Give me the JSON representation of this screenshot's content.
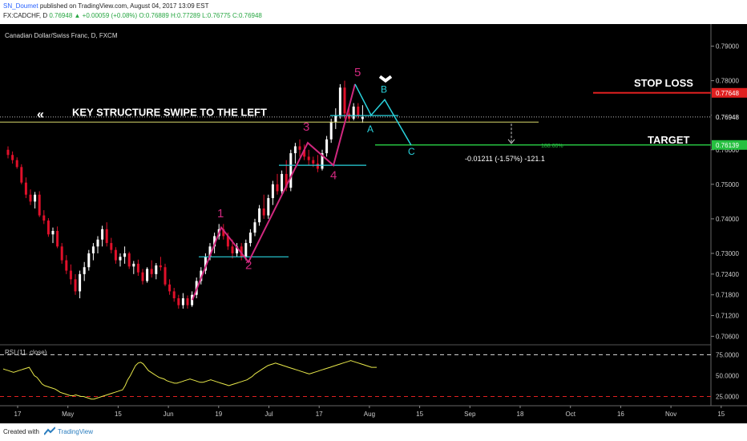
{
  "header": {
    "user": "SN_Doumet",
    "published": "published on TradingView.com, August 04, 2017 13:09 EST",
    "symbol": "FX:CADCHF, D",
    "last": "0.76948",
    "change": "+0.00059 (+0.08%)",
    "ohlc": "O:0.76889 H:0.77289 L:0.76775 C:0.76948"
  },
  "footer": {
    "created": "Created with",
    "brand": "TradingView"
  },
  "chart_data": {
    "type": "candlestick",
    "title": "Canadian Dollar/Swiss Franc, D, FXCM",
    "price_ylim": [
      0.704,
      0.795
    ],
    "price_ticks": [
      "0.79000",
      "0.78000",
      "0.77000",
      "0.76000",
      "0.75000",
      "0.74000",
      "0.73000",
      "0.72400",
      "0.71800",
      "0.71200",
      "0.70600"
    ],
    "x_ticks": [
      "17",
      "May",
      "15",
      "Jun",
      "19",
      "Jul",
      "17",
      "Aug",
      "15",
      "Sep",
      "18",
      "Oct",
      "16",
      "Nov",
      "15"
    ],
    "colors": {
      "up": "#ffffff",
      "down": "#e0102a",
      "wave": "#d0287f",
      "abc": "#29d3dd",
      "key_level": "#d8d86a",
      "stop": "#e02020",
      "target": "#26c040",
      "rsi": "#e8e84a",
      "rsi_band": "#e02020"
    },
    "candles_ohlc": [
      [
        0.76,
        0.761,
        0.7575,
        0.7585
      ],
      [
        0.7585,
        0.7595,
        0.756,
        0.757
      ],
      [
        0.757,
        0.7578,
        0.7545,
        0.755
      ],
      [
        0.755,
        0.7558,
        0.75,
        0.7505
      ],
      [
        0.7505,
        0.752,
        0.746,
        0.747
      ],
      [
        0.747,
        0.7485,
        0.744,
        0.745
      ],
      [
        0.745,
        0.7478,
        0.743,
        0.747
      ],
      [
        0.747,
        0.748,
        0.7405,
        0.741
      ],
      [
        0.741,
        0.7425,
        0.7385,
        0.7395
      ],
      [
        0.7395,
        0.7402,
        0.7348,
        0.7355
      ],
      [
        0.7355,
        0.7375,
        0.733,
        0.7365
      ],
      [
        0.7365,
        0.7378,
        0.7315,
        0.732
      ],
      [
        0.732,
        0.733,
        0.727,
        0.728
      ],
      [
        0.728,
        0.7295,
        0.724,
        0.725
      ],
      [
        0.725,
        0.7268,
        0.721,
        0.7225
      ],
      [
        0.7225,
        0.724,
        0.718,
        0.719
      ],
      [
        0.719,
        0.725,
        0.717,
        0.724
      ],
      [
        0.724,
        0.7275,
        0.722,
        0.726
      ],
      [
        0.726,
        0.731,
        0.725,
        0.73
      ],
      [
        0.73,
        0.733,
        0.728,
        0.732
      ],
      [
        0.732,
        0.735,
        0.73,
        0.734
      ],
      [
        0.734,
        0.738,
        0.732,
        0.737
      ],
      [
        0.737,
        0.739,
        0.732,
        0.733
      ],
      [
        0.733,
        0.7345,
        0.73,
        0.731
      ],
      [
        0.731,
        0.7318,
        0.727,
        0.728
      ],
      [
        0.728,
        0.73,
        0.7262,
        0.729
      ],
      [
        0.729,
        0.732,
        0.727,
        0.73
      ],
      [
        0.73,
        0.7305,
        0.7255,
        0.7262
      ],
      [
        0.7262,
        0.7278,
        0.724,
        0.727
      ],
      [
        0.727,
        0.7282,
        0.7235,
        0.7245
      ],
      [
        0.7245,
        0.7255,
        0.721,
        0.722
      ],
      [
        0.722,
        0.726,
        0.7215,
        0.7255
      ],
      [
        0.7255,
        0.728,
        0.723,
        0.724
      ],
      [
        0.724,
        0.7272,
        0.7225,
        0.7265
      ],
      [
        0.7265,
        0.729,
        0.725,
        0.726
      ],
      [
        0.726,
        0.727,
        0.7205,
        0.721
      ],
      [
        0.721,
        0.7225,
        0.718,
        0.719
      ],
      [
        0.719,
        0.72,
        0.716,
        0.717
      ],
      [
        0.717,
        0.718,
        0.714,
        0.715
      ],
      [
        0.715,
        0.7185,
        0.714,
        0.717
      ],
      [
        0.717,
        0.7178,
        0.714,
        0.715
      ],
      [
        0.715,
        0.719,
        0.7145,
        0.718
      ],
      [
        0.718,
        0.723,
        0.717,
        0.722
      ],
      [
        0.722,
        0.726,
        0.721,
        0.725
      ],
      [
        0.725,
        0.73,
        0.724,
        0.729
      ],
      [
        0.729,
        0.733,
        0.728,
        0.732
      ],
      [
        0.732,
        0.736,
        0.73,
        0.735
      ],
      [
        0.735,
        0.7385,
        0.734,
        0.737
      ],
      [
        0.737,
        0.7385,
        0.734,
        0.735
      ],
      [
        0.735,
        0.736,
        0.731,
        0.732
      ],
      [
        0.732,
        0.734,
        0.7285,
        0.73
      ],
      [
        0.73,
        0.733,
        0.729,
        0.732
      ],
      [
        0.732,
        0.733,
        0.728,
        0.729
      ],
      [
        0.729,
        0.734,
        0.728,
        0.733
      ],
      [
        0.733,
        0.737,
        0.732,
        0.736
      ],
      [
        0.736,
        0.74,
        0.735,
        0.739
      ],
      [
        0.739,
        0.744,
        0.738,
        0.743
      ],
      [
        0.743,
        0.747,
        0.74,
        0.741
      ],
      [
        0.741,
        0.747,
        0.74,
        0.746
      ],
      [
        0.746,
        0.751,
        0.744,
        0.75
      ],
      [
        0.75,
        0.753,
        0.747,
        0.748
      ],
      [
        0.748,
        0.754,
        0.747,
        0.753
      ],
      [
        0.753,
        0.757,
        0.748,
        0.749
      ],
      [
        0.749,
        0.76,
        0.748,
        0.759
      ],
      [
        0.759,
        0.762,
        0.756,
        0.761
      ],
      [
        0.761,
        0.763,
        0.758,
        0.76
      ],
      [
        0.76,
        0.7615,
        0.757,
        0.758
      ],
      [
        0.758,
        0.76,
        0.7555,
        0.757
      ],
      [
        0.757,
        0.758,
        0.755,
        0.756
      ],
      [
        0.756,
        0.7585,
        0.7535,
        0.7545
      ],
      [
        0.7545,
        0.76,
        0.754,
        0.759
      ],
      [
        0.759,
        0.764,
        0.758,
        0.763
      ],
      [
        0.763,
        0.769,
        0.762,
        0.768
      ],
      [
        0.768,
        0.772,
        0.766,
        0.77
      ],
      [
        0.77,
        0.779,
        0.769,
        0.778
      ],
      [
        0.778,
        0.78,
        0.769,
        0.7705
      ],
      [
        0.7705,
        0.772,
        0.768,
        0.769
      ],
      [
        0.769,
        0.7735,
        0.7685,
        0.7725
      ],
      [
        0.7725,
        0.7735,
        0.769,
        0.77
      ],
      [
        0.7689,
        0.7729,
        0.7678,
        0.7695
      ]
    ],
    "rsi": {
      "label": "RSI (11, close)",
      "ylim": [
        14,
        85
      ],
      "levels": [
        75,
        25
      ],
      "ticks": [
        "75.0000",
        "50.0000",
        "25.0000"
      ],
      "values": [
        58,
        57,
        56,
        55,
        54,
        55,
        56,
        57,
        58,
        59,
        60,
        55,
        50,
        48,
        44,
        40,
        38,
        37,
        36,
        35,
        34,
        32,
        30,
        29,
        28,
        27,
        26,
        26,
        27,
        26,
        25,
        25,
        24,
        23,
        22,
        22,
        23,
        24,
        25,
        26,
        27,
        28,
        29,
        30,
        31,
        32,
        33,
        38,
        45,
        50,
        56,
        62,
        65,
        66,
        64,
        60,
        56,
        54,
        52,
        50,
        48,
        47,
        46,
        44,
        43,
        42,
        41,
        41,
        42,
        43,
        44,
        45,
        46,
        45,
        44,
        43,
        42,
        42,
        43,
        44,
        45,
        44,
        43,
        42,
        41,
        40,
        39,
        38,
        39,
        40,
        41,
        42,
        43,
        44,
        45,
        47,
        49,
        52,
        54,
        56,
        58,
        60,
        62,
        63,
        64,
        65,
        64,
        63,
        62,
        61,
        60,
        59,
        58,
        57,
        56,
        55,
        54,
        53,
        52,
        53,
        54,
        55,
        56,
        57,
        58,
        59,
        60,
        61,
        62,
        63,
        64,
        65,
        66,
        67,
        68,
        67,
        66,
        65,
        64,
        63,
        62,
        61,
        60,
        60,
        60
      ]
    },
    "annotations": {
      "key_structure": "KEY STRUCTURE SWIPE TO THE LEFT",
      "stop_loss_label": "STOP LOSS",
      "target_label": "TARGET",
      "stop_loss_price": "0.77648",
      "target_price": "0.76139",
      "current_price": "0.76948",
      "fib_level": "188.60%",
      "measure": "-0.01211 (-1.57%) -121.1",
      "waves": [
        "1",
        "2",
        "3",
        "4",
        "5"
      ],
      "abc": [
        "A",
        "B",
        "C"
      ]
    }
  }
}
